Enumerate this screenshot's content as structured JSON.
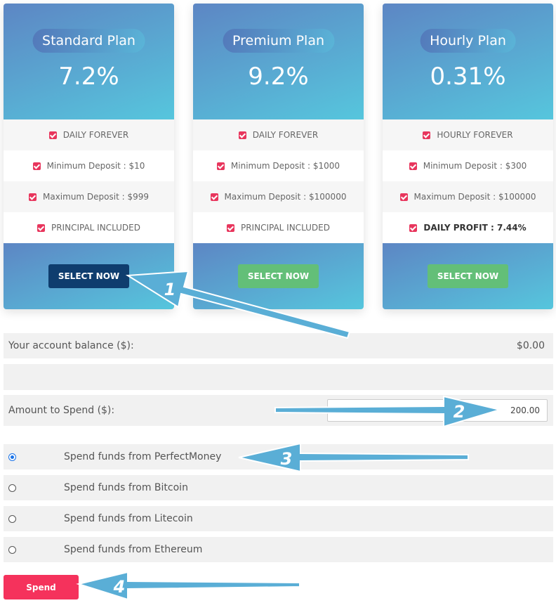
{
  "plans": [
    {
      "name": "Standard Plan",
      "rate": "7.2%",
      "features": [
        "DAILY FOREVER",
        "Minimum Deposit : $10",
        "Maximum Deposit : $999",
        "PRINCIPAL INCLUDED"
      ],
      "button": "SELECT NOW",
      "button_color": "#0f3d6e"
    },
    {
      "name": "Premium Plan",
      "rate": "9.2%",
      "features": [
        "DAILY FOREVER",
        "Minimum Deposit : $1000",
        "Maximum Deposit : $100000",
        "PRINCIPAL INCLUDED"
      ],
      "button": "SELECT NOW",
      "button_color": "#63bf78"
    },
    {
      "name": "Hourly Plan",
      "rate": "0.31%",
      "features": [
        "HOURLY FOREVER",
        "Minimum Deposit : $300",
        "Maximum Deposit : $100000",
        "DAILY PROFIT : 7.44%"
      ],
      "button": "SELECT NOW",
      "button_color": "#63bf78",
      "bold_last": true
    }
  ],
  "balance": {
    "label": "Your account balance ($):",
    "value": "$0.00"
  },
  "amount": {
    "label": "Amount to Spend ($):",
    "value": "200.00"
  },
  "payment_options": [
    "Spend funds from PerfectMoney",
    "Spend funds from Bitcoin",
    "Spend funds from Litecoin",
    "Spend funds from Ethereum"
  ],
  "selected_option": 0,
  "submit": "Spend",
  "annotations": [
    "1",
    "2",
    "3",
    "4"
  ]
}
